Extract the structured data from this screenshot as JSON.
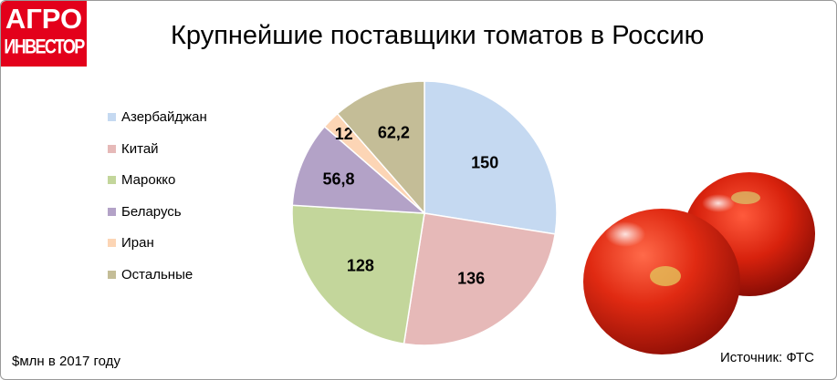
{
  "logo": {
    "line1": "АГРО",
    "line2": "ИНВЕСТОР"
  },
  "chart_data": {
    "type": "pie",
    "title": "Крупнейшие поставщики томатов в Россию",
    "units_note": "$млн в 2017 году",
    "source": "Источник: ФТС",
    "legend_position": "left",
    "slices": [
      {
        "label": "Азербайджан",
        "value": 150,
        "value_label": "150",
        "color": "#c5d9f1"
      },
      {
        "label": "Китай",
        "value": 136,
        "value_label": "136",
        "color": "#e6b9b8"
      },
      {
        "label": "Марокко",
        "value": 128,
        "value_label": "128",
        "color": "#c3d69b"
      },
      {
        "label": "Беларусь",
        "value": 56.8,
        "value_label": "56,8",
        "color": "#b3a2c7"
      },
      {
        "label": "Иран",
        "value": 12,
        "value_label": "12",
        "color": "#fcd5b5"
      },
      {
        "label": "Остальные",
        "value": 62.2,
        "value_label": "62,2",
        "color": "#c4bd97"
      }
    ]
  },
  "image": {
    "icon": "tomatoes-illustration"
  }
}
